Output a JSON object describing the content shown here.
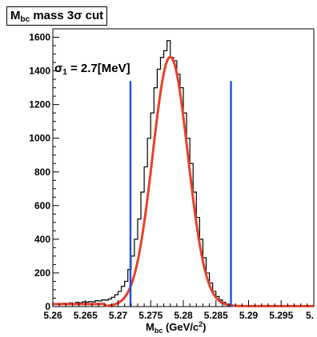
{
  "title": {
    "main": "M",
    "sub": "bc",
    "rest": " mass 3σ cut"
  },
  "annotation": {
    "prefix": "σ",
    "sub": "1",
    "rest": " =  2.7[MeV]"
  },
  "xaxis_title": {
    "main": "M",
    "sub": "bc",
    "rest": " (GeV/c",
    "sup": "2",
    "end": ")"
  },
  "colors": {
    "fit": "#e8402a",
    "cut_lines": "#1f4fd8",
    "histogram": "#000000",
    "background": "#ffffff"
  },
  "chart_data": {
    "type": "line",
    "xlim": [
      5.26,
      5.3
    ],
    "ylim": [
      0,
      1650
    ],
    "xticks": [
      "5.26",
      "5.265",
      "5.27",
      "5.275",
      "5.28",
      "5.285",
      "5.29",
      "5.295",
      "5."
    ],
    "yticks": [
      "0",
      "200",
      "400",
      "600",
      "800",
      "1000",
      "1200",
      "1400",
      "1600"
    ],
    "series": [
      {
        "kind": "histogram-step",
        "bin_width": 0.0005,
        "x": [
          5.26,
          5.2605,
          5.261,
          5.2615,
          5.262,
          5.2625,
          5.263,
          5.2635,
          5.264,
          5.2645,
          5.265,
          5.2655,
          5.266,
          5.2665,
          5.267,
          5.2675,
          5.268,
          5.2685,
          5.269,
          5.2695,
          5.27,
          5.2705,
          5.271,
          5.2715,
          5.272,
          5.2725,
          5.273,
          5.2735,
          5.274,
          5.2745,
          5.275,
          5.2755,
          5.276,
          5.2765,
          5.277,
          5.2775,
          5.278,
          5.2785,
          5.279,
          5.2795,
          5.28,
          5.2805,
          5.281,
          5.2815,
          5.282,
          5.2825,
          5.283,
          5.2835,
          5.284,
          5.2845,
          5.285,
          5.2855,
          5.286,
          5.2865,
          5.287,
          5.2875,
          5.288,
          5.2885,
          5.289,
          5.2895,
          5.29,
          5.2905,
          5.291,
          5.2915,
          5.292,
          5.2925,
          5.293,
          5.2935,
          5.294,
          5.2945,
          5.295,
          5.2955,
          5.296,
          5.2965,
          5.297,
          5.2975,
          5.298,
          5.2985,
          5.299,
          5.2995
        ],
        "y": [
          15,
          18,
          14,
          20,
          17,
          22,
          19,
          25,
          23,
          28,
          26,
          30,
          28,
          35,
          33,
          40,
          38,
          45,
          55,
          70,
          90,
          120,
          150,
          220,
          300,
          400,
          520,
          680,
          830,
          1000,
          1150,
          1300,
          1410,
          1480,
          1520,
          1580,
          1480,
          1460,
          1380,
          1300,
          1150,
          1000,
          850,
          680,
          530,
          400,
          290,
          200,
          140,
          90,
          60,
          40,
          25,
          15,
          10,
          8,
          5,
          3,
          2,
          1,
          0,
          1,
          0,
          0,
          1,
          0,
          0,
          1,
          0,
          0,
          0,
          1,
          0,
          0,
          0,
          0,
          1,
          0,
          0,
          0
        ]
      },
      {
        "kind": "fit-curve",
        "mean": 5.278,
        "sigma": 0.0027,
        "amplitude": 1480,
        "bg_left": 15,
        "bg_step_at": 5.268
      }
    ],
    "cut_lines": [
      5.2719,
      5.2873
    ],
    "cut_line_top": 1340
  }
}
